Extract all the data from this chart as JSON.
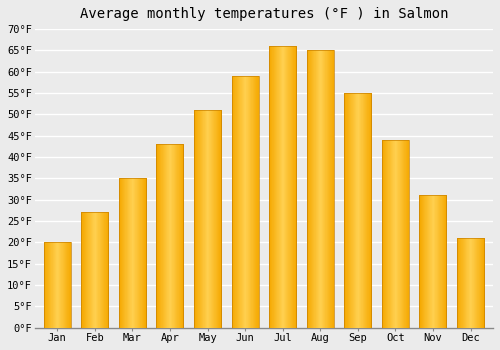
{
  "title": "Average monthly temperatures (°F ) in Salmon",
  "months": [
    "Jan",
    "Feb",
    "Mar",
    "Apr",
    "May",
    "Jun",
    "Jul",
    "Aug",
    "Sep",
    "Oct",
    "Nov",
    "Dec"
  ],
  "values": [
    20,
    27,
    35,
    43,
    51,
    59,
    66,
    65,
    55,
    44,
    31,
    21
  ],
  "bar_color_outer": "#F5A800",
  "bar_color_inner": "#FFD050",
  "bar_edge_color": "#C88000",
  "ylim": [
    0,
    70
  ],
  "yticks": [
    0,
    5,
    10,
    15,
    20,
    25,
    30,
    35,
    40,
    45,
    50,
    55,
    60,
    65,
    70
  ],
  "ytick_labels": [
    "0°F",
    "5°F",
    "10°F",
    "15°F",
    "20°F",
    "25°F",
    "30°F",
    "35°F",
    "40°F",
    "45°F",
    "50°F",
    "55°F",
    "60°F",
    "65°F",
    "70°F"
  ],
  "bg_color": "#EBEBEB",
  "plot_bg_color": "#EBEBEB",
  "grid_color": "#FFFFFF",
  "title_fontsize": 10,
  "tick_fontsize": 7.5,
  "font_family": "monospace",
  "bar_width": 0.72
}
